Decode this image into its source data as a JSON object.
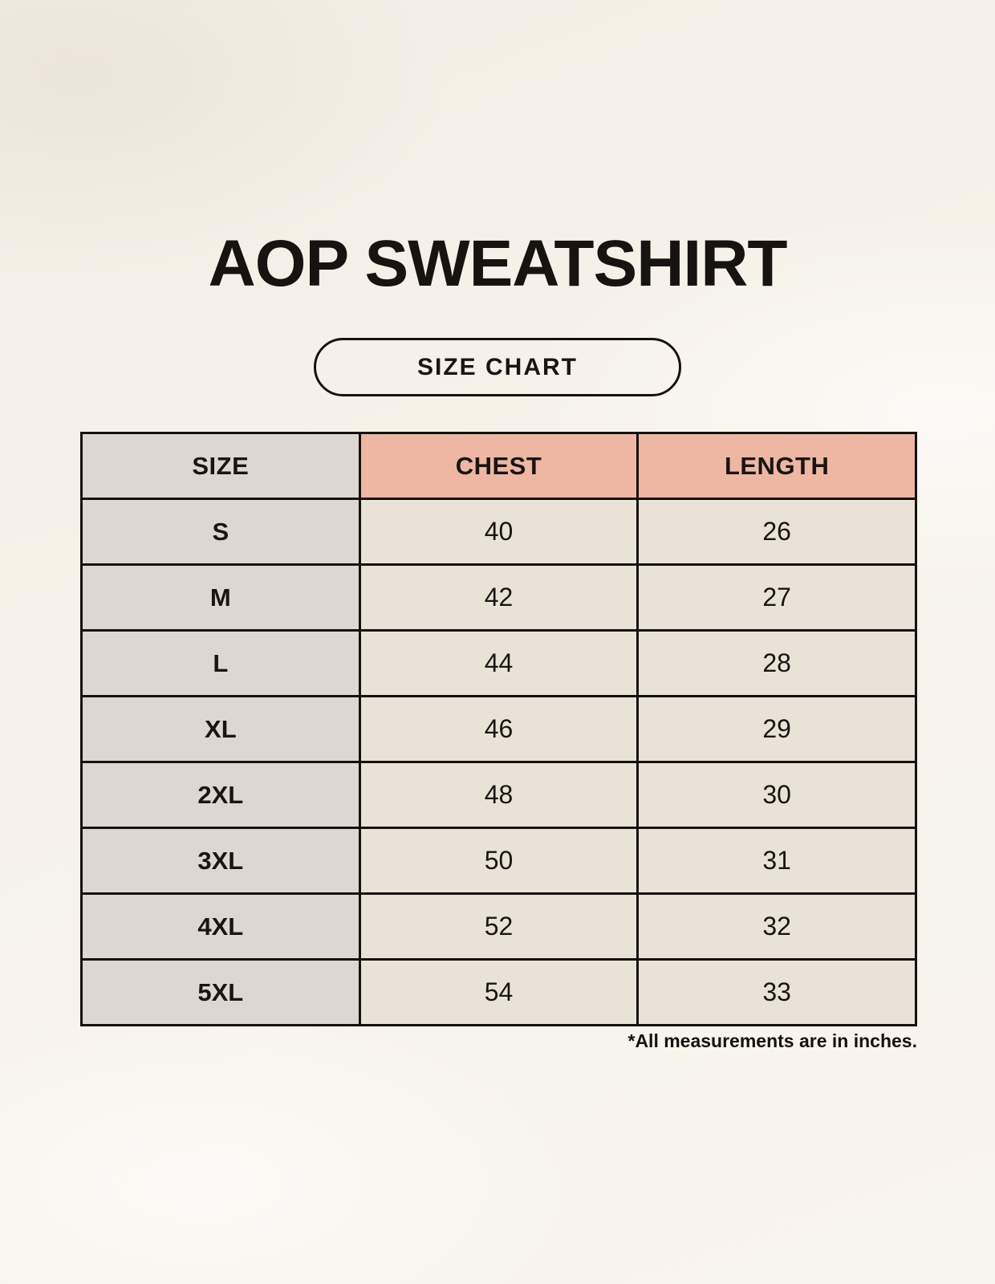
{
  "page": {
    "title": "AOP SWEATSHIRT",
    "badge_label": "SIZE CHART",
    "footnote": "*All measurements are in inches."
  },
  "colors": {
    "background": "#f6f2e9",
    "header_size_bg": "#ddd7d1",
    "header_measure_bg": "#edb7a4",
    "size_column_bg": "#ddd7d1",
    "data_cell_bg": "#e9e2d6",
    "border": "#14110e",
    "text": "#161310"
  },
  "chart_data": {
    "type": "table",
    "title": "AOP SWEATSHIRT",
    "subtitle": "SIZE CHART",
    "columns": [
      "SIZE",
      "CHEST",
      "LENGTH"
    ],
    "rows": [
      [
        "S",
        "40",
        "26"
      ],
      [
        "M",
        "42",
        "27"
      ],
      [
        "L",
        "44",
        "28"
      ],
      [
        "XL",
        "46",
        "29"
      ],
      [
        "2XL",
        "48",
        "30"
      ],
      [
        "3XL",
        "50",
        "31"
      ],
      [
        "4XL",
        "52",
        "32"
      ],
      [
        "5XL",
        "54",
        "33"
      ]
    ],
    "units": "inches",
    "note": "*All measurements are in inches."
  }
}
